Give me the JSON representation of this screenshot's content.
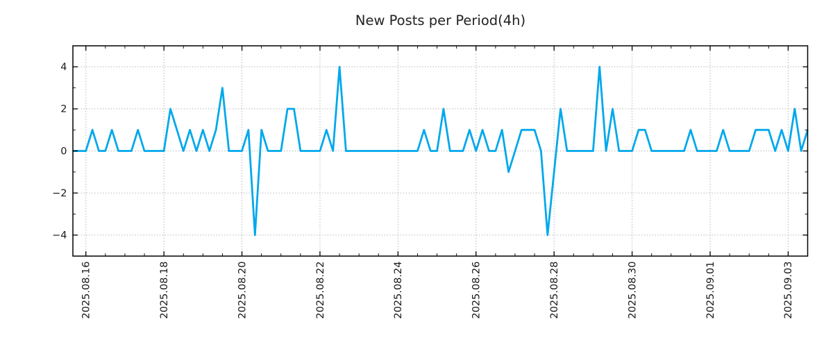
{
  "title": "New Posts per Period(4h)",
  "colors": {
    "line": "#00a8ec",
    "grid": "#adadad",
    "axis": "#000000",
    "text": "#1a1a1a",
    "background": "#ffffff"
  },
  "chart_data": {
    "type": "line",
    "title": "New Posts per Period(4h)",
    "xlabel": "",
    "ylabel": "",
    "x_start": "2025.08.15 16:00",
    "x_step_hours": 4,
    "x_tick_labels": [
      "2025.08.16",
      "2025.08.18",
      "2025.08.20",
      "2025.08.22",
      "2025.08.24",
      "2025.08.26",
      "2025.08.28",
      "2025.08.30",
      "2025.09.01",
      "2025.09.03"
    ],
    "x_tick_indices": [
      2,
      14,
      26,
      38,
      50,
      62,
      74,
      86,
      98,
      110
    ],
    "x_minor_tick_every_steps": 3,
    "y_ticks": [
      4,
      2,
      0,
      -2,
      -4
    ],
    "y_tick_labels": [
      "4",
      "2",
      "0",
      "−2",
      "−4"
    ],
    "y_minor_ticks": [
      3,
      1,
      -1,
      -3
    ],
    "ylim": [
      -5,
      5
    ],
    "grid": "dotted",
    "legend": "none",
    "values": [
      0,
      0,
      0,
      1,
      0,
      0,
      1,
      0,
      0,
      0,
      1,
      0,
      0,
      0,
      0,
      2,
      1,
      0,
      1,
      0,
      1,
      0,
      1,
      3,
      0,
      0,
      0,
      1,
      -4,
      1,
      0,
      0,
      0,
      2,
      2,
      0,
      0,
      0,
      0,
      1,
      0,
      4,
      0,
      0,
      0,
      0,
      0,
      0,
      0,
      0,
      0,
      0,
      0,
      0,
      1,
      0,
      0,
      2,
      0,
      0,
      0,
      1,
      0,
      1,
      0,
      0,
      1,
      -1,
      0,
      1,
      1,
      1,
      0,
      -4,
      -1,
      2,
      0,
      0,
      0,
      0,
      0,
      4,
      0,
      2,
      0,
      0,
      0,
      1,
      1,
      0,
      0,
      0,
      0,
      0,
      0,
      1,
      0,
      0,
      0,
      0,
      1,
      0,
      0,
      0,
      0,
      1,
      1,
      1,
      0,
      1,
      0,
      2,
      0,
      1
    ]
  }
}
